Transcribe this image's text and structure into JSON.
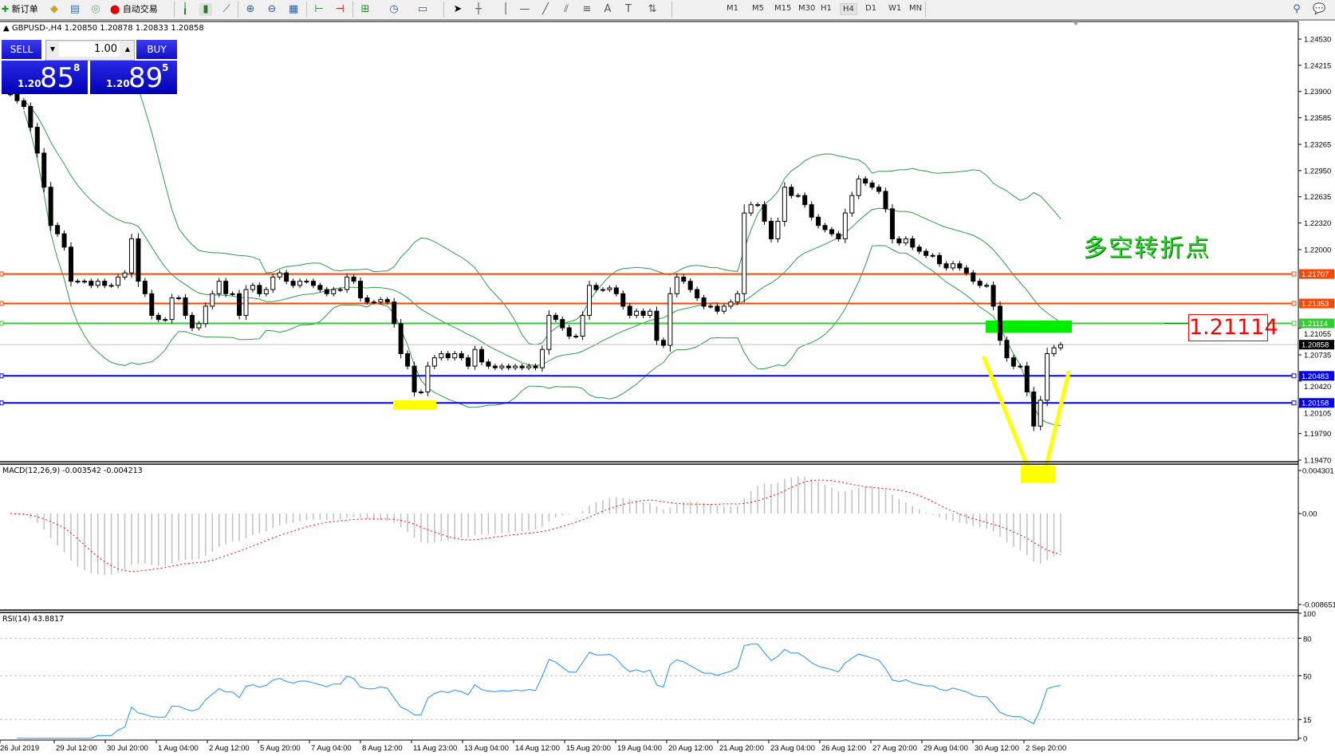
{
  "toolbar": {
    "new_order_label": "新订单",
    "auto_trading_label": "自动交易",
    "icons": [
      "new-order-icon",
      "history-center-icon",
      "options-icon",
      "signals-icon",
      "auto-trading-icon",
      "bar-chart-icon",
      "candlestick-icon",
      "line-chart-icon",
      "zoom-in-icon",
      "zoom-out-icon",
      "tile-windows-icon",
      "chart-shift-icon",
      "autoscroll-icon",
      "new-chart-icon",
      "periods-icon",
      "templates-icon",
      "cursor-icon",
      "crosshair-icon",
      "vertical-line-icon",
      "horizontal-line-icon",
      "trendline-icon",
      "equidistant-channel-icon",
      "fibonacci-icon",
      "text-icon",
      "text-label-icon",
      "arrows-icon",
      "search-icon",
      "chat-icon"
    ],
    "text_tool": "A",
    "timeframes": [
      "M1",
      "M5",
      "M15",
      "M30",
      "H1",
      "H4",
      "D1",
      "W1",
      "MN"
    ],
    "active_timeframe": "H4"
  },
  "chart": {
    "symbol_info": "GBPUSD-,H4  1.20850 1.20878 1.20833 1.20858",
    "one_click": {
      "sell_label": "SELL",
      "buy_label": "BUY",
      "lot": "1.00",
      "sell_price": {
        "prefix": "1.20",
        "big": "85",
        "sup": "8"
      },
      "buy_price": {
        "prefix": "1.20",
        "big": "89",
        "sup": "5"
      }
    },
    "annotation_text": "多空转折点",
    "annotation_price": "1.21114",
    "price_axis_labels": [
      "1.24530",
      "1.24215",
      "1.23900",
      "1.23585",
      "1.23265",
      "1.22950",
      "1.22635",
      "1.22320",
      "1.22000",
      "1.21055",
      "1.20735",
      "1.20420",
      "1.20105",
      "1.19790",
      "1.19470"
    ],
    "horizontal_lines": [
      {
        "price": "1.21707",
        "color": "#ff4500"
      },
      {
        "price": "1.21353",
        "color": "#ff4500"
      },
      {
        "price": "1.21114",
        "color": "#32cd32"
      },
      {
        "price": "1.20483",
        "color": "#0000ff"
      },
      {
        "price": "1.20158",
        "color": "#0000ff"
      }
    ],
    "current_price": {
      "price": "1.20858",
      "color": "#000000"
    },
    "time_labels": [
      "26 Jul 2019",
      "29 Jul 12:00",
      "30 Jul 20:00",
      "1 Aug 04:00",
      "2 Aug 12:00",
      "5 Aug 20:00",
      "7 Aug 04:00",
      "8 Aug 12:00",
      "11 Aug 23:00",
      "13 Aug 04:00",
      "14 Aug 12:00",
      "15 Aug 20:00",
      "19 Aug 04:00",
      "20 Aug 12:00",
      "21 Aug 20:00",
      "23 Aug 04:00",
      "26 Aug 12:00",
      "27 Aug 20:00",
      "29 Aug 04:00",
      "30 Aug 12:00",
      "2 Sep 20:00"
    ],
    "colors": {
      "bollinger": "#2e9b4a",
      "macd_hist": "#c0c0c0",
      "macd_signal": "#ff0000",
      "rsi": "#1e90ff",
      "highlight_yellow": "#ffff00",
      "highlight_green": "#00ee00"
    }
  },
  "macd": {
    "label": "MACD(12,26,9) -0.003542 -0.004213",
    "axis_labels": [
      "0.004301",
      "0.00",
      "-0.008651"
    ]
  },
  "rsi": {
    "label": "RSI(14) 43.8817",
    "axis_labels": [
      "100",
      "80",
      "50",
      "15",
      "0"
    ],
    "levels": [
      80,
      50,
      15
    ]
  },
  "chart_data": {
    "type": "candlestick",
    "symbol": "GBPUSD",
    "timeframe": "H4",
    "ylim": [
      1.1947,
      1.2453
    ],
    "closes": [
      1.2387,
      1.2379,
      1.2372,
      1.2347,
      1.2316,
      1.2275,
      1.2229,
      1.2219,
      1.2203,
      1.2162,
      1.2162,
      1.2162,
      1.2157,
      1.2162,
      1.2157,
      1.2157,
      1.2167,
      1.2172,
      1.2213,
      1.2162,
      1.2147,
      1.2121,
      1.2116,
      1.2116,
      1.2142,
      1.2142,
      1.2121,
      1.2106,
      1.2111,
      1.2132,
      1.2147,
      1.2162,
      1.2147,
      1.2147,
      1.2121,
      1.2152,
      1.2157,
      1.2147,
      1.2152,
      1.2167,
      1.2172,
      1.2162,
      1.2157,
      1.2162,
      1.2162,
      1.2157,
      1.2152,
      1.2147,
      1.2152,
      1.2152,
      1.2167,
      1.2162,
      1.2142,
      1.2137,
      1.2137,
      1.214,
      1.2137,
      1.2111,
      1.2075,
      1.206,
      1.2029,
      1.2029,
      1.206,
      1.207,
      1.2075,
      1.207,
      1.2075,
      1.207,
      1.206,
      1.208,
      1.2065,
      1.206,
      1.2058,
      1.206,
      1.2058,
      1.206,
      1.2058,
      1.206,
      1.2058,
      1.208,
      1.2121,
      1.2116,
      1.2106,
      1.2096,
      1.2096,
      1.2121,
      1.2157,
      1.2152,
      1.2152,
      1.2154,
      1.2147,
      1.2132,
      1.2121,
      1.2126,
      1.2121,
      1.2126,
      1.2091,
      1.2085,
      1.2147,
      1.2167,
      1.2162,
      1.2152,
      1.2142,
      1.2132,
      1.2132,
      1.2126,
      1.2132,
      1.2137,
      1.2147,
      1.2244,
      1.2254,
      1.2254,
      1.2234,
      1.2213,
      1.2234,
      1.2275,
      1.2265,
      1.2265,
      1.2254,
      1.2239,
      1.2229,
      1.2224,
      1.2219,
      1.2213,
      1.2244,
      1.2265,
      1.2285,
      1.228,
      1.2275,
      1.227,
      1.2249,
      1.2213,
      1.2208,
      1.2213,
      1.2203,
      1.2198,
      1.2193,
      1.2193,
      1.2183,
      1.2178,
      1.2183,
      1.2178,
      1.2172,
      1.2162,
      1.2157,
      1.2157,
      1.2132,
      1.2091,
      1.207,
      1.206,
      1.206,
      1.2029,
      1.1988,
      1.2019,
      1.2075,
      1.2082,
      1.20858
    ]
  }
}
